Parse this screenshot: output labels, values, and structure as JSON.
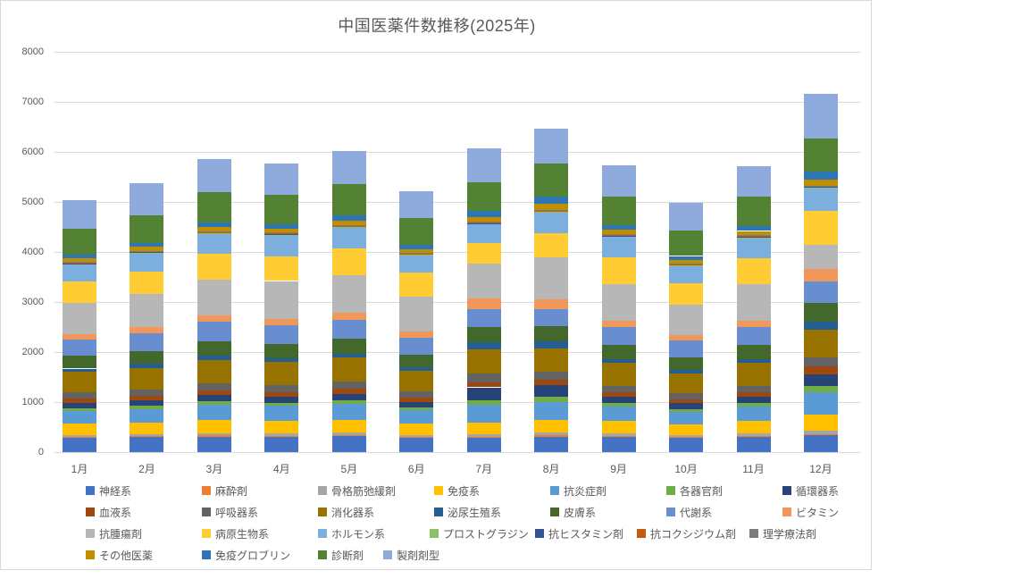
{
  "chart_data": {
    "type": "bar",
    "stacked": true,
    "title": "中国医薬件数推移(2025年)",
    "xlabel": "",
    "ylabel": "",
    "ylim": [
      0,
      8000
    ],
    "ytick_step": 1000,
    "ytick_labels": [
      "0",
      "1000",
      "2000",
      "3000",
      "4000",
      "5000",
      "6000",
      "7000",
      "8000"
    ],
    "grid": true,
    "legend_position": "bottom",
    "categories": [
      "1月",
      "2月",
      "3月",
      "4月",
      "5月",
      "6月",
      "7月",
      "8月",
      "9月",
      "10月",
      "11月",
      "12月"
    ],
    "monthly_totals_approx": [
      5020,
      5340,
      5890,
      5770,
      6000,
      5215,
      6070,
      6460,
      5730,
      5020,
      5730,
      7180
    ],
    "series": [
      {
        "name": "神経系",
        "color": "#4472C4",
        "values": [
          290,
          300,
          310,
          305,
          315,
          285,
          280,
          310,
          300,
          285,
          300,
          345
        ]
      },
      {
        "name": "麻酔剤",
        "color": "#ED7D31",
        "values": [
          20,
          20,
          25,
          25,
          25,
          20,
          25,
          25,
          25,
          20,
          25,
          20
        ]
      },
      {
        "name": "骨格筋弛緩剤",
        "color": "#A5A5A5",
        "values": [
          35,
          40,
          45,
          45,
          45,
          40,
          50,
          50,
          45,
          35,
          45,
          60
        ]
      },
      {
        "name": "免疫系",
        "color": "#FFC000",
        "values": [
          220,
          230,
          260,
          255,
          265,
          225,
          240,
          260,
          250,
          215,
          250,
          330
        ]
      },
      {
        "name": "抗炎症剤",
        "color": "#5B9BD5",
        "values": [
          260,
          270,
          300,
          295,
          310,
          265,
          355,
          350,
          290,
          255,
          295,
          445
        ]
      },
      {
        "name": "各器官剤",
        "color": "#70AD47",
        "values": [
          55,
          60,
          70,
          65,
          70,
          55,
          90,
          120,
          65,
          55,
          65,
          120
        ]
      },
      {
        "name": "循環器系",
        "color": "#264478",
        "values": [
          110,
          120,
          130,
          125,
          135,
          115,
          255,
          230,
          125,
          110,
          125,
          240
        ]
      },
      {
        "name": "血液系",
        "color": "#9E480E",
        "values": [
          80,
          85,
          95,
          90,
          95,
          80,
          100,
          100,
          90,
          80,
          90,
          150
        ]
      },
      {
        "name": "呼吸器系",
        "color": "#636363",
        "values": [
          120,
          130,
          140,
          135,
          145,
          125,
          180,
          170,
          135,
          120,
          135,
          180
        ]
      },
      {
        "name": "消化器系",
        "color": "#997300",
        "values": [
          410,
          430,
          470,
          460,
          480,
          420,
          480,
          460,
          455,
          405,
          450,
          565
        ]
      },
      {
        "name": "泌尿生殖系",
        "color": "#255E91",
        "values": [
          70,
          75,
          85,
          80,
          85,
          70,
          150,
          140,
          80,
          70,
          80,
          150
        ]
      },
      {
        "name": "皮膚系",
        "color": "#43682B",
        "values": [
          250,
          265,
          290,
          285,
          295,
          255,
          300,
          310,
          280,
          250,
          285,
          370
        ]
      },
      {
        "name": "代謝系",
        "color": "#698ED0",
        "values": [
          330,
          350,
          380,
          370,
          385,
          335,
          355,
          340,
          365,
          325,
          360,
          435
        ]
      },
      {
        "name": "ビタミン",
        "color": "#F1975A",
        "values": [
          110,
          120,
          130,
          125,
          130,
          115,
          210,
          180,
          125,
          110,
          125,
          250
        ]
      },
      {
        "name": "抗腫瘍剤",
        "color": "#B7B7B7",
        "values": [
          620,
          660,
          720,
          760,
          760,
          695,
          700,
          850,
          730,
          615,
          720,
          485
        ]
      },
      {
        "name": "病原生物系",
        "color": "#FFCD33",
        "values": [
          430,
          460,
          510,
          495,
          530,
          485,
          415,
          480,
          525,
          430,
          520,
          685
        ]
      },
      {
        "name": "ホルモン系",
        "color": "#7CAFDD",
        "values": [
          340,
          360,
          400,
          420,
          420,
          350,
          370,
          415,
          420,
          340,
          415,
          450
        ]
      },
      {
        "name": "プロストグラジン",
        "color": "#8CC168",
        "values": [
          10,
          10,
          10,
          10,
          10,
          10,
          10,
          10,
          10,
          10,
          10,
          10
        ]
      },
      {
        "name": "抗ヒスタミン剤",
        "color": "#335593",
        "values": [
          15,
          15,
          15,
          15,
          15,
          15,
          15,
          15,
          15,
          15,
          15,
          15
        ]
      },
      {
        "name": "抗コクシジウム剤",
        "color": "#C55A11",
        "values": [
          10,
          10,
          10,
          10,
          10,
          10,
          10,
          10,
          10,
          10,
          10,
          10
        ]
      },
      {
        "name": "理学療法剤",
        "color": "#7C7C7C",
        "values": [
          15,
          15,
          15,
          15,
          15,
          15,
          15,
          15,
          15,
          15,
          15,
          15
        ]
      },
      {
        "name": "その他医薬",
        "color": "#BF8F00",
        "values": [
          70,
          75,
          85,
          85,
          90,
          75,
          95,
          120,
          85,
          70,
          85,
          110
        ]
      },
      {
        "name": "免疫グロブリン",
        "color": "#2E75B6",
        "values": [
          80,
          85,
          95,
          90,
          100,
          85,
          130,
          150,
          90,
          80,
          90,
          160
        ]
      },
      {
        "name": "診断剤",
        "color": "#548235",
        "values": [
          520,
          550,
          600,
          590,
          620,
          535,
          570,
          660,
          585,
          515,
          590,
          665
        ]
      },
      {
        "name": "製剤剤型",
        "color": "#8FAADC",
        "values": [
          560,
          640,
          675,
          610,
          660,
          535,
          680,
          690,
          615,
          555,
          620,
          890
        ]
      }
    ]
  }
}
